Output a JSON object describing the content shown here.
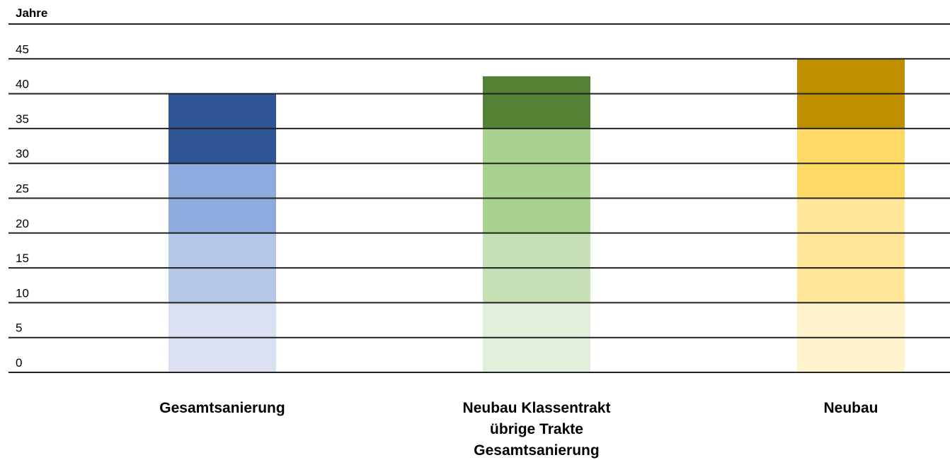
{
  "chart_data": {
    "type": "stacked-bar",
    "y_axis_label": "Jahre",
    "categories": [
      [
        "Gesamtsanierung"
      ],
      [
        "Neubau Klassentrakt",
        "übrige Trakte",
        "Gesamtsanierung"
      ],
      [
        "Neubau"
      ]
    ],
    "stacks": [
      {
        "values": [
          10,
          10,
          10,
          10
        ],
        "colors": [
          "#dae0f2",
          "#b4c7e7",
          "#8faadc",
          "#2f5597"
        ]
      },
      {
        "values": [
          10,
          10,
          15,
          7.5
        ],
        "colors": [
          "#e2efda",
          "#c5e0b4",
          "#a9d18e",
          "#538135"
        ]
      },
      {
        "values": [
          10,
          15,
          10,
          10
        ],
        "colors": [
          "#fff2cc",
          "#ffe699",
          "#ffd966",
          "#bf8f00"
        ]
      }
    ],
    "ylim": [
      0,
      50
    ],
    "yticks": [
      0,
      5,
      10,
      15,
      20,
      25,
      30,
      35,
      40,
      45
    ],
    "grid": true
  }
}
